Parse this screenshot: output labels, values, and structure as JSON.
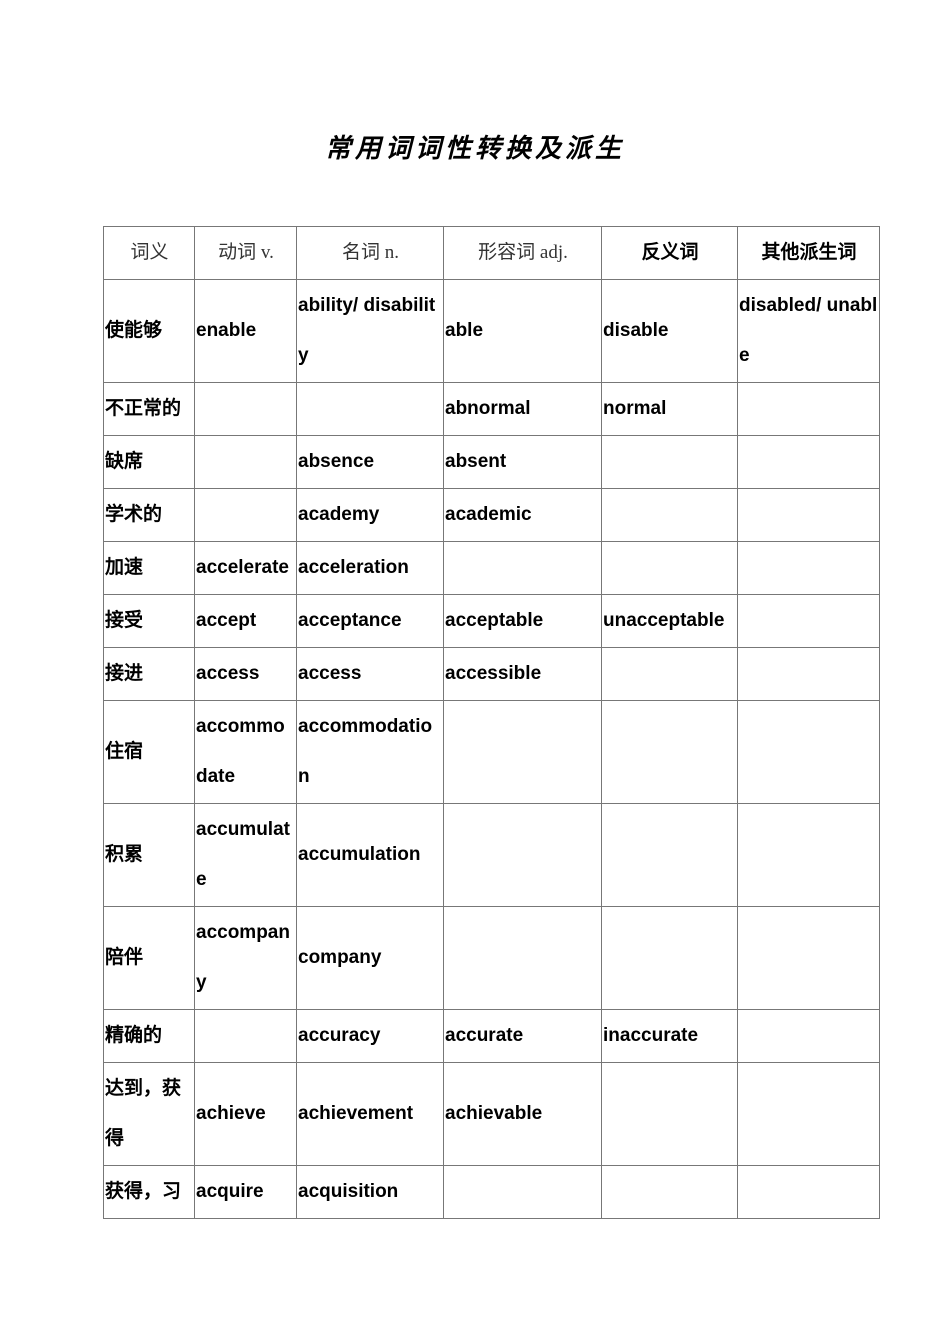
{
  "title": "常用词词性转换及派生",
  "headers": [
    "词义",
    "动词 v.",
    "名词 n.",
    "形容词 adj.",
    "反义词",
    "其他派生词"
  ],
  "rows": [
    [
      "使能够",
      "enable",
      "ability/ disability",
      "able",
      "disable",
      "disabled/ unable"
    ],
    [
      "不正常的",
      "",
      "",
      "abnormal",
      "normal",
      ""
    ],
    [
      "缺席",
      "",
      "absence",
      "absent",
      "",
      ""
    ],
    [
      "学术的",
      "",
      "academy",
      "academic",
      "",
      ""
    ],
    [
      "加速",
      "accelerate",
      "acceleration",
      "",
      "",
      ""
    ],
    [
      "接受",
      "accept",
      "acceptance",
      "acceptable",
      "unacceptable",
      ""
    ],
    [
      "接进",
      "access",
      "access",
      "accessible",
      "",
      ""
    ],
    [
      "住宿",
      "accommodate",
      "accommodation",
      "",
      "",
      ""
    ],
    [
      "积累",
      "accumulate",
      "accumulation",
      "",
      "",
      ""
    ],
    [
      "陪伴",
      "accompany",
      "company",
      "",
      "",
      ""
    ],
    [
      "精确的",
      "",
      "accuracy",
      "accurate",
      "inaccurate",
      ""
    ],
    [
      "达到，获得",
      "achieve",
      "achievement",
      "achievable",
      "",
      ""
    ],
    [
      "获得，习",
      "acquire",
      "acquisition",
      "",
      "",
      ""
    ]
  ]
}
